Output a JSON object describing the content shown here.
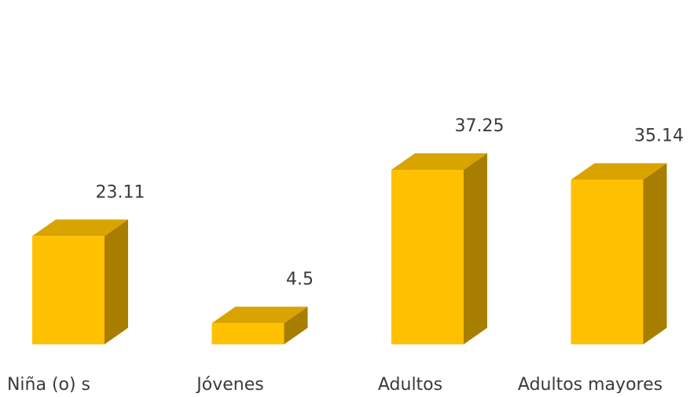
{
  "chart_data": {
    "type": "bar",
    "style": "3d-column",
    "categories": [
      "Niña (o) s",
      "Jóvenes",
      "Adultos",
      "Adultos mayores"
    ],
    "values": [
      23.11,
      4.5,
      37.25,
      35.14
    ],
    "data_labels": [
      "23.11",
      "4.5",
      "37.25",
      "35.14"
    ],
    "title": "",
    "xlabel": "",
    "ylabel": "",
    "ylim": [
      0,
      40
    ],
    "grid": false,
    "legend": "none"
  },
  "colors": {
    "front": "#FFC000",
    "top": "#D9A300",
    "side": "#A87E00",
    "edge": "#8C6A00",
    "text": "#3A3A3A"
  }
}
